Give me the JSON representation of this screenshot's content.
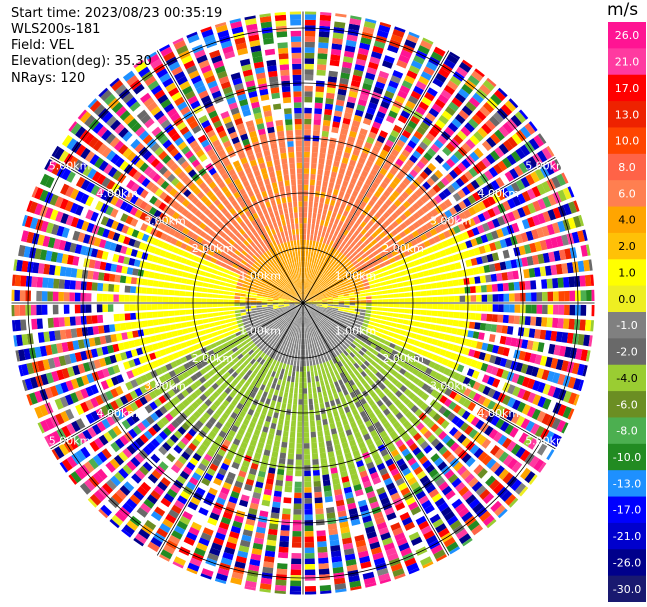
{
  "header": {
    "start_time": "Start time: 2023/08/23 00:35:19",
    "instrument": "WLS200s-181",
    "field": "Field: VEL",
    "elevation": "Elevation(deg): 35.30",
    "nrays": "NRays: 120"
  },
  "colorbar": {
    "unit": "m/s",
    "ticks": [
      "26.0",
      "21.0",
      "17.0",
      "13.0",
      "10.0",
      "8.0",
      "6.0",
      "4.0",
      "2.0",
      "1.0",
      "0.0",
      "-1.0",
      "-2.0",
      "-4.0",
      "-6.0",
      "-8.0",
      "-10.0",
      "-13.0",
      "-17.0",
      "-21.0",
      "-26.0",
      "-30.0"
    ],
    "colors": [
      "#ff1493",
      "#ff3aa0",
      "#ff0000",
      "#ee2200",
      "#ff4500",
      "#ff6347",
      "#ff7f50",
      "#ffa500",
      "#ffc107",
      "#ffff00",
      "#eeee22",
      "#808080",
      "#696969",
      "#9acd32",
      "#6b8e23",
      "#4caf50",
      "#228b22",
      "#1e90ff",
      "#0000ff",
      "#0000cd",
      "#00008b",
      "#191970"
    ]
  },
  "chart_data": {
    "type": "heatmap",
    "plot": "PPI",
    "field": "VEL",
    "units": "m/s",
    "n_rays": 120,
    "elevation_deg": 35.3,
    "range_rings_km": [
      1.0,
      2.0,
      3.0,
      4.0,
      5.0
    ],
    "ring_label": "km",
    "ring_label_units": [
      "1.00km",
      "2.00km",
      "3.00km",
      "4.00km",
      "5.00km"
    ],
    "max_range_km": 5.3,
    "clean_range_km": 3.2,
    "pattern": [
      {
        "azimuth_deg": [
          270,
          90
        ],
        "via": "north",
        "value_m_s": 5.0,
        "near_value_m_s": 2.0
      },
      {
        "azimuth_deg": [
          90,
          270
        ],
        "via": "south",
        "value_m_s": -5.0,
        "near_value_m_s": -2.0
      },
      {
        "azimuth_deg": [
          60,
          120
        ],
        "value_m_s": 0.0
      },
      {
        "azimuth_deg": [
          240,
          300
        ],
        "value_m_s": 0.0
      }
    ],
    "noise_range": [
      -30.0,
      26.0
    ]
  }
}
